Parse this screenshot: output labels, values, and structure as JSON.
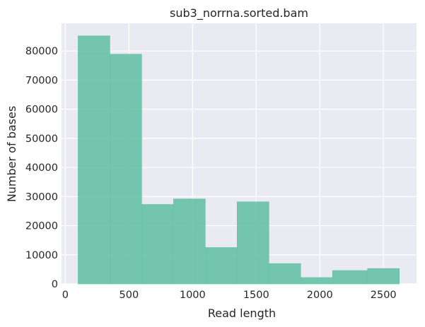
{
  "chart_data": {
    "type": "bar",
    "title": "sub3_norrna.sorted.bam",
    "xlabel": "Read length",
    "ylabel": "Number of bases",
    "xlim": [
      -30,
      2760
    ],
    "ylim": [
      0,
      89500
    ],
    "xticks": [
      0,
      500,
      1000,
      1500,
      2000,
      2500
    ],
    "yticks": [
      0,
      10000,
      20000,
      30000,
      40000,
      50000,
      60000,
      70000,
      80000
    ],
    "grid": true,
    "bar_color": "#66c2a5",
    "background_color": "#eaeaf2",
    "bins": [
      {
        "start": 100,
        "end": 350,
        "value": 85200
      },
      {
        "start": 350,
        "end": 600,
        "value": 78900
      },
      {
        "start": 600,
        "end": 850,
        "value": 27300
      },
      {
        "start": 850,
        "end": 1100,
        "value": 29200
      },
      {
        "start": 1100,
        "end": 1350,
        "value": 12500
      },
      {
        "start": 1350,
        "end": 1600,
        "value": 28200
      },
      {
        "start": 1600,
        "end": 1850,
        "value": 7000
      },
      {
        "start": 1850,
        "end": 2100,
        "value": 2200
      },
      {
        "start": 2100,
        "end": 2375,
        "value": 4600
      },
      {
        "start": 2375,
        "end": 2625,
        "value": 5300
      }
    ]
  }
}
